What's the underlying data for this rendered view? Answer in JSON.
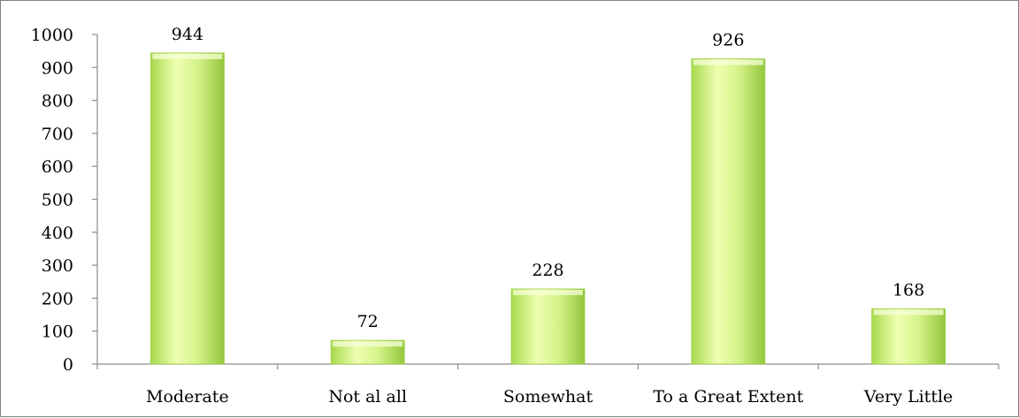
{
  "chart_data": {
    "type": "bar",
    "categories": [
      "Moderate",
      "Not al all",
      "Somewhat",
      "To a Great Extent",
      "Very Little"
    ],
    "values": [
      944,
      72,
      228,
      926,
      168
    ],
    "data_labels": [
      "944",
      "72",
      "228",
      "926",
      "168"
    ],
    "ylim": [
      0,
      1000
    ],
    "y_ticks": [
      "0",
      "100",
      "200",
      "300",
      "400",
      "500",
      "600",
      "700",
      "800",
      "900",
      "1000"
    ],
    "grid": false,
    "legend": "none",
    "colors": {
      "bar_light": "#f2ffc4",
      "bar_mid": "#c6ec6a",
      "bar_dark": "#8fc33a",
      "axis": "#8c8c8c",
      "frame": "#7f7f7f"
    }
  }
}
